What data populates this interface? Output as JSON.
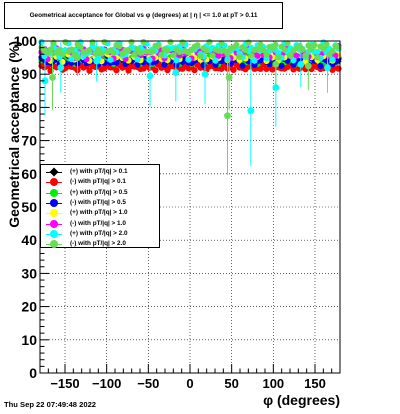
{
  "chart_data": {
    "type": "scatter",
    "title": "Geometrical acceptance for Global vs φ (degrees) at | η | <= 1.0 at pT > 0.11",
    "xlabel": "φ (degrees)",
    "ylabel": "Geometrical acceptance (%)",
    "xlim": [
      -180,
      180
    ],
    "ylim": [
      0,
      100
    ],
    "xticks": [
      -150,
      -100,
      -50,
      0,
      50,
      100,
      150
    ],
    "yticks": [
      0,
      10,
      20,
      30,
      40,
      50,
      60,
      70,
      80,
      90,
      100
    ],
    "grid": true,
    "legend_position": "middle-left",
    "series": [
      {
        "name": "(+) with pT/|q| > 0.1",
        "color": "#000000",
        "marker": "diamond",
        "y_center": 93.5,
        "y_spread": 1.0
      },
      {
        "name": "(-) with pT/|q| > 0.1",
        "color": "#ff0000",
        "marker": "circle",
        "y_center": 92.0,
        "y_spread": 1.0
      },
      {
        "name": "(+) with pT/|q| > 0.5",
        "color": "#00ee00",
        "marker": "circle",
        "y_center": 94.5,
        "y_spread": 1.5
      },
      {
        "name": "(-) with pT/|q| > 0.5",
        "color": "#0000ff",
        "marker": "circle",
        "y_center": 94.0,
        "y_spread": 1.5
      },
      {
        "name": "(+) with pT/|q| > 1.0",
        "color": "#ffff00",
        "marker": "circle",
        "y_center": 95.5,
        "y_spread": 2.0
      },
      {
        "name": "(-) with pT/|q| > 1.0",
        "color": "#ff00ff",
        "marker": "circle",
        "y_center": 96.5,
        "y_spread": 2.0
      },
      {
        "name": "(+) with pT/|q| > 2.0",
        "color": "#00ffff",
        "marker": "circle",
        "y_center": 97.0,
        "y_spread": 3.0,
        "outliers": [
          {
            "x": -174,
            "y": 88
          },
          {
            "x": -155,
            "y": 92
          },
          {
            "x": -112,
            "y": 94
          },
          {
            "x": -48,
            "y": 89.5
          },
          {
            "x": -17,
            "y": 90.5
          },
          {
            "x": 18,
            "y": 90
          },
          {
            "x": 73,
            "y": 79
          },
          {
            "x": 103,
            "y": 86
          },
          {
            "x": 133,
            "y": 93
          },
          {
            "x": 165,
            "y": 92
          }
        ]
      },
      {
        "name": "(-) with pT/|q| > 2.0",
        "color": "#66dd55",
        "marker": "circle",
        "y_center": 97.5,
        "y_spread": 2.5,
        "outliers": [
          {
            "x": -165,
            "y": 89
          },
          {
            "x": -135,
            "y": 95
          },
          {
            "x": 45,
            "y": 77.5
          },
          {
            "x": 47,
            "y": 89
          },
          {
            "x": 103,
            "y": 93
          },
          {
            "x": 142,
            "y": 92.5
          }
        ]
      }
    ]
  },
  "footer": {
    "date": "Thu Sep 22 07:49:48 2022"
  }
}
